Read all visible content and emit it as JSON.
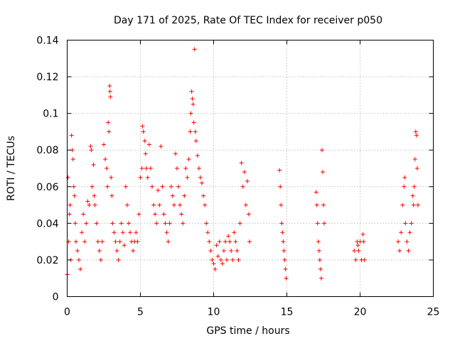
{
  "chart_data": {
    "type": "scatter",
    "title": "Day 171 of 2025, Rate Of TEC Index for receiver p050",
    "xlabel": "GPS time / hours",
    "ylabel": "ROTI / TECUs",
    "xlim": [
      0,
      25
    ],
    "ylim": [
      0,
      0.14
    ],
    "x_ticks": [
      0,
      5,
      10,
      15,
      20,
      25
    ],
    "y_ticks": [
      0,
      0.02,
      0.04,
      0.06,
      0.08,
      0.1,
      0.12,
      0.14
    ],
    "x_tick_labels": [
      "0",
      "5",
      "10",
      "15",
      "20",
      "25"
    ],
    "y_tick_labels": [
      "0",
      "0.02",
      "0.04",
      "0.06",
      "0.08",
      "0.1",
      "0.12",
      "0.14"
    ],
    "grid": true,
    "marker": "plus",
    "color": "#ff0000",
    "series": [
      {
        "points": [
          [
            0.0,
            0.012
          ],
          [
            0.05,
            0.065
          ],
          [
            0.1,
            0.03
          ],
          [
            0.15,
            0.045
          ],
          [
            0.2,
            0.05
          ],
          [
            0.25,
            0.02
          ],
          [
            0.3,
            0.088
          ],
          [
            0.35,
            0.08
          ],
          [
            0.4,
            0.075
          ],
          [
            0.45,
            0.06
          ],
          [
            0.5,
            0.055
          ],
          [
            0.55,
            0.04
          ],
          [
            0.6,
            0.03
          ],
          [
            0.7,
            0.025
          ],
          [
            0.8,
            0.02
          ],
          [
            0.9,
            0.015
          ],
          [
            1.0,
            0.035
          ],
          [
            1.1,
            0.045
          ],
          [
            1.2,
            0.03
          ],
          [
            1.3,
            0.04
          ],
          [
            1.4,
            0.052
          ],
          [
            1.5,
            0.05
          ],
          [
            1.6,
            0.082
          ],
          [
            1.65,
            0.08
          ],
          [
            1.7,
            0.06
          ],
          [
            1.8,
            0.072
          ],
          [
            1.85,
            0.055
          ],
          [
            1.9,
            0.05
          ],
          [
            2.0,
            0.04
          ],
          [
            2.1,
            0.03
          ],
          [
            2.2,
            0.025
          ],
          [
            2.3,
            0.02
          ],
          [
            2.4,
            0.03
          ],
          [
            2.5,
            0.083
          ],
          [
            2.6,
            0.075
          ],
          [
            2.7,
            0.07
          ],
          [
            2.75,
            0.06
          ],
          [
            2.8,
            0.095
          ],
          [
            2.85,
            0.09
          ],
          [
            2.9,
            0.115
          ],
          [
            2.92,
            0.112
          ],
          [
            2.95,
            0.109
          ],
          [
            3.0,
            0.065
          ],
          [
            3.05,
            0.055
          ],
          [
            3.1,
            0.04
          ],
          [
            3.2,
            0.035
          ],
          [
            3.3,
            0.03
          ],
          [
            3.4,
            0.025
          ],
          [
            3.5,
            0.02
          ],
          [
            3.6,
            0.03
          ],
          [
            3.7,
            0.04
          ],
          [
            3.8,
            0.035
          ],
          [
            3.9,
            0.028
          ],
          [
            4.0,
            0.06
          ],
          [
            4.1,
            0.05
          ],
          [
            4.2,
            0.04
          ],
          [
            4.3,
            0.035
          ],
          [
            4.4,
            0.03
          ],
          [
            4.5,
            0.025
          ],
          [
            4.6,
            0.03
          ],
          [
            4.7,
            0.035
          ],
          [
            4.8,
            0.03
          ],
          [
            4.9,
            0.045
          ],
          [
            5.0,
            0.065
          ],
          [
            5.1,
            0.07
          ],
          [
            5.15,
            0.093
          ],
          [
            5.2,
            0.09
          ],
          [
            5.3,
            0.085
          ],
          [
            5.35,
            0.078
          ],
          [
            5.4,
            0.07
          ],
          [
            5.5,
            0.065
          ],
          [
            5.6,
            0.083
          ],
          [
            5.7,
            0.07
          ],
          [
            5.8,
            0.06
          ],
          [
            5.9,
            0.05
          ],
          [
            6.0,
            0.045
          ],
          [
            6.1,
            0.04
          ],
          [
            6.2,
            0.058
          ],
          [
            6.3,
            0.05
          ],
          [
            6.4,
            0.082
          ],
          [
            6.5,
            0.06
          ],
          [
            6.6,
            0.045
          ],
          [
            6.7,
            0.04
          ],
          [
            6.8,
            0.035
          ],
          [
            6.9,
            0.03
          ],
          [
            7.0,
            0.04
          ],
          [
            7.1,
            0.06
          ],
          [
            7.2,
            0.055
          ],
          [
            7.3,
            0.05
          ],
          [
            7.4,
            0.078
          ],
          [
            7.5,
            0.07
          ],
          [
            7.6,
            0.06
          ],
          [
            7.7,
            0.05
          ],
          [
            7.8,
            0.045
          ],
          [
            7.9,
            0.04
          ],
          [
            8.0,
            0.055
          ],
          [
            8.1,
            0.07
          ],
          [
            8.2,
            0.065
          ],
          [
            8.3,
            0.075
          ],
          [
            8.4,
            0.09
          ],
          [
            8.45,
            0.1
          ],
          [
            8.5,
            0.112
          ],
          [
            8.55,
            0.108
          ],
          [
            8.6,
            0.105
          ],
          [
            8.65,
            0.095
          ],
          [
            8.7,
            0.135
          ],
          [
            8.75,
            0.09
          ],
          [
            8.8,
            0.085
          ],
          [
            8.9,
            0.077
          ],
          [
            9.0,
            0.07
          ],
          [
            9.1,
            0.065
          ],
          [
            9.2,
            0.062
          ],
          [
            9.3,
            0.055
          ],
          [
            9.4,
            0.05
          ],
          [
            9.5,
            0.04
          ],
          [
            9.6,
            0.035
          ],
          [
            9.7,
            0.03
          ],
          [
            9.8,
            0.025
          ],
          [
            9.9,
            0.02
          ],
          [
            10.0,
            0.018
          ],
          [
            10.1,
            0.015
          ],
          [
            10.2,
            0.028
          ],
          [
            10.3,
            0.022
          ],
          [
            10.4,
            0.03
          ],
          [
            10.5,
            0.02
          ],
          [
            10.6,
            0.018
          ],
          [
            10.7,
            0.025
          ],
          [
            10.8,
            0.03
          ],
          [
            10.9,
            0.02
          ],
          [
            11.0,
            0.033
          ],
          [
            11.1,
            0.03
          ],
          [
            11.2,
            0.025
          ],
          [
            11.3,
            0.02
          ],
          [
            11.4,
            0.035
          ],
          [
            11.5,
            0.03
          ],
          [
            11.6,
            0.025
          ],
          [
            11.7,
            0.02
          ],
          [
            11.8,
            0.04
          ],
          [
            11.9,
            0.073
          ],
          [
            12.0,
            0.06
          ],
          [
            12.1,
            0.068
          ],
          [
            12.2,
            0.05
          ],
          [
            12.3,
            0.063
          ],
          [
            12.4,
            0.045
          ],
          [
            12.45,
            0.03
          ],
          [
            14.5,
            0.069
          ],
          [
            14.55,
            0.06
          ],
          [
            14.6,
            0.05
          ],
          [
            14.65,
            0.04
          ],
          [
            14.7,
            0.035
          ],
          [
            14.75,
            0.03
          ],
          [
            14.8,
            0.025
          ],
          [
            14.85,
            0.02
          ],
          [
            14.9,
            0.015
          ],
          [
            14.95,
            0.01
          ],
          [
            17.0,
            0.057
          ],
          [
            17.05,
            0.05
          ],
          [
            17.1,
            0.04
          ],
          [
            17.15,
            0.03
          ],
          [
            17.2,
            0.025
          ],
          [
            17.25,
            0.02
          ],
          [
            17.3,
            0.015
          ],
          [
            17.35,
            0.01
          ],
          [
            17.4,
            0.08
          ],
          [
            17.45,
            0.068
          ],
          [
            17.5,
            0.05
          ],
          [
            17.55,
            0.04
          ],
          [
            19.6,
            0.025
          ],
          [
            19.7,
            0.02
          ],
          [
            19.8,
            0.03
          ],
          [
            19.85,
            0.028
          ],
          [
            19.9,
            0.025
          ],
          [
            20.0,
            0.03
          ],
          [
            20.1,
            0.02
          ],
          [
            20.2,
            0.034
          ],
          [
            20.25,
            0.03
          ],
          [
            20.3,
            0.02
          ],
          [
            22.6,
            0.03
          ],
          [
            22.7,
            0.025
          ],
          [
            22.8,
            0.035
          ],
          [
            22.9,
            0.05
          ],
          [
            23.0,
            0.06
          ],
          [
            23.05,
            0.065
          ],
          [
            23.1,
            0.04
          ],
          [
            23.2,
            0.03
          ],
          [
            23.3,
            0.025
          ],
          [
            23.4,
            0.035
          ],
          [
            23.5,
            0.04
          ],
          [
            23.6,
            0.055
          ],
          [
            23.65,
            0.05
          ],
          [
            23.7,
            0.06
          ],
          [
            23.75,
            0.075
          ],
          [
            23.8,
            0.09
          ],
          [
            23.85,
            0.088
          ],
          [
            23.9,
            0.07
          ],
          [
            23.95,
            0.05
          ]
        ]
      }
    ]
  }
}
